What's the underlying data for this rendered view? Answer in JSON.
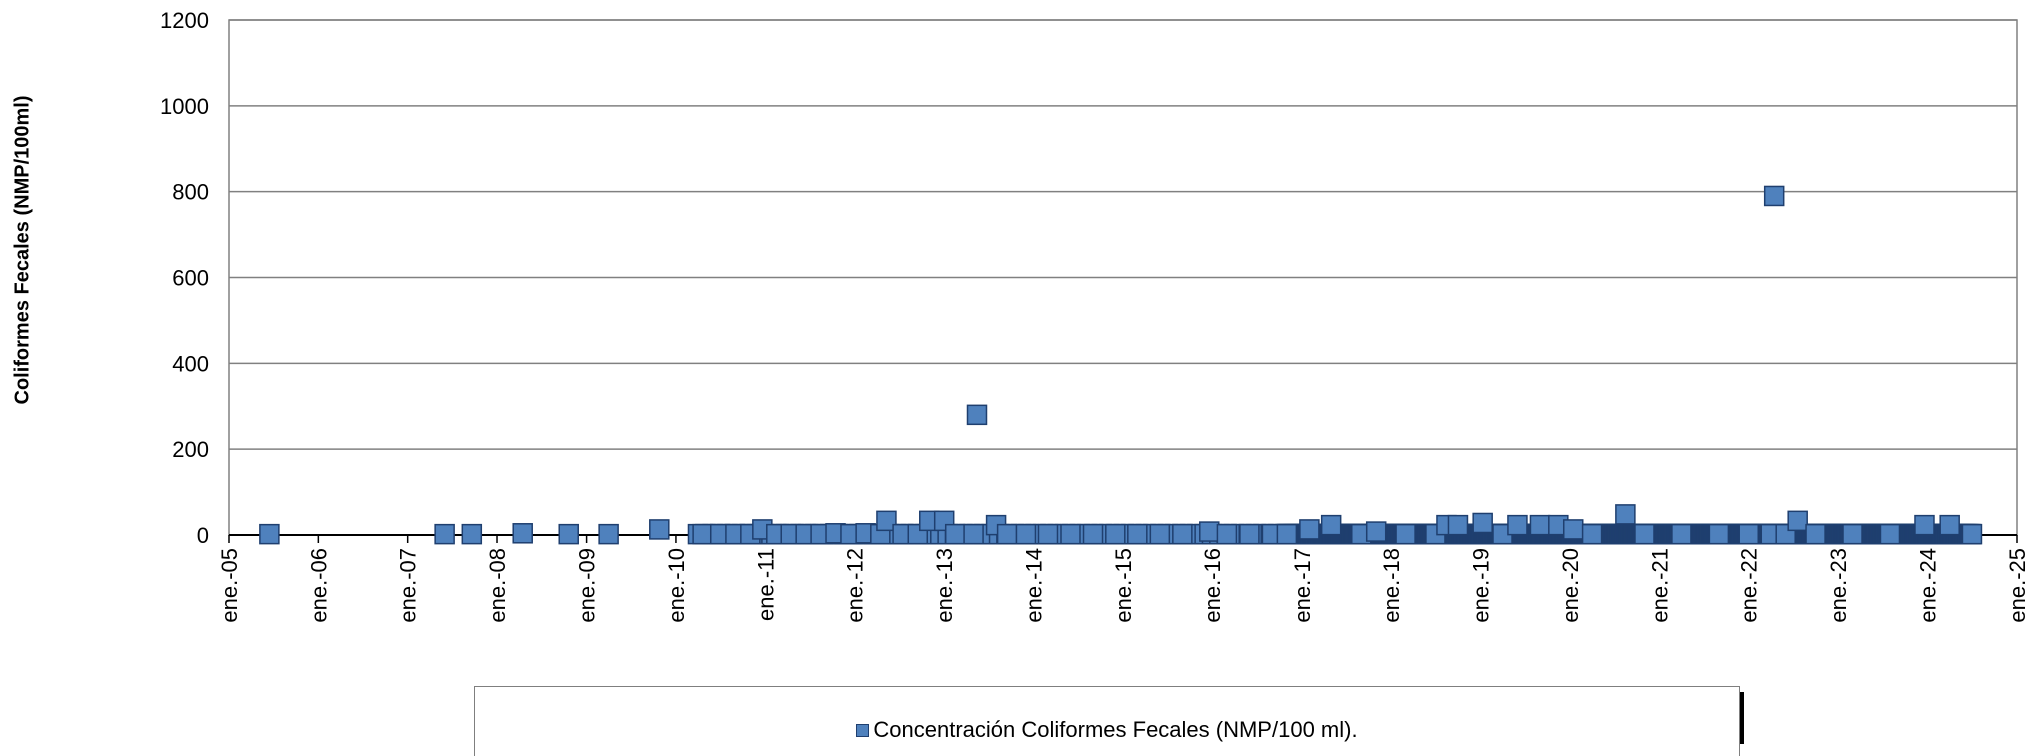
{
  "chart_data": {
    "type": "scatter",
    "ylabel": "Coliformes Fecales (NMP/100ml)",
    "ylim": [
      0,
      1200
    ],
    "yticks": [
      0,
      200,
      400,
      600,
      800,
      1000,
      1200
    ],
    "xlim": [
      "2005-01-01",
      "2025-01-01"
    ],
    "xtick_labels": [
      "ene.-05",
      "ene.-06",
      "ene.-07",
      "ene.-08",
      "ene.-09",
      "ene.-10",
      "ene.-11",
      "ene.-12",
      "ene.-13",
      "ene.-14",
      "ene.-15",
      "ene.-16",
      "ene.-17",
      "ene.-18",
      "ene.-19",
      "ene.-20",
      "ene.-21",
      "ene.-22",
      "ene.-23",
      "ene.-24",
      "ene.-25"
    ],
    "grid": "horizontal",
    "legend_position": "bottom",
    "colors": {
      "marker_fill": "#4f81bd",
      "marker_edge": "#1f3f6f"
    },
    "series": [
      {
        "name": "Concentración Coliformes Fecales (NMP/100 ml).",
        "points": [
          {
            "x": "2005-06-15",
            "y": 2
          },
          {
            "x": "2007-06-01",
            "y": 2
          },
          {
            "x": "2007-09-20",
            "y": 2
          },
          {
            "x": "2008-04-15",
            "y": 4
          },
          {
            "x": "2008-10-20",
            "y": 2
          },
          {
            "x": "2009-04-01",
            "y": 2
          },
          {
            "x": "2009-10-25",
            "y": 13
          },
          {
            "x": "2010-04-20",
            "y": 2
          },
          {
            "x": "2010-07-01",
            "y": 2
          },
          {
            "x": "2010-09-01",
            "y": 2
          },
          {
            "x": "2010-11-01",
            "y": 2
          },
          {
            "x": "2010-12-20",
            "y": 13
          },
          {
            "x": "2011-02-15",
            "y": 2
          },
          {
            "x": "2011-04-15",
            "y": 2
          },
          {
            "x": "2011-06-15",
            "y": 2
          },
          {
            "x": "2011-08-15",
            "y": 2
          },
          {
            "x": "2011-10-15",
            "y": 4
          },
          {
            "x": "2011-12-15",
            "y": 2
          },
          {
            "x": "2012-02-15",
            "y": 4
          },
          {
            "x": "2012-04-15",
            "y": 2
          },
          {
            "x": "2012-05-10",
            "y": 33
          },
          {
            "x": "2012-07-15",
            "y": 2
          },
          {
            "x": "2012-09-15",
            "y": 2
          },
          {
            "x": "2012-11-01",
            "y": 33
          },
          {
            "x": "2013-01-01",
            "y": 33
          },
          {
            "x": "2013-02-15",
            "y": 2
          },
          {
            "x": "2013-05-01",
            "y": 2
          },
          {
            "x": "2013-05-15",
            "y": 280
          },
          {
            "x": "2013-08-01",
            "y": 23
          },
          {
            "x": "2013-09-15",
            "y": 2
          },
          {
            "x": "2013-12-01",
            "y": 2
          },
          {
            "x": "2014-03-01",
            "y": 2
          },
          {
            "x": "2014-06-01",
            "y": 2
          },
          {
            "x": "2014-09-01",
            "y": 2
          },
          {
            "x": "2014-12-01",
            "y": 2
          },
          {
            "x": "2015-03-01",
            "y": 2
          },
          {
            "x": "2015-06-01",
            "y": 2
          },
          {
            "x": "2015-09-01",
            "y": 2
          },
          {
            "x": "2015-12-20",
            "y": 8
          },
          {
            "x": "2016-03-01",
            "y": 2
          },
          {
            "x": "2016-06-01",
            "y": 2
          },
          {
            "x": "2016-09-01",
            "y": 2
          },
          {
            "x": "2016-11-01",
            "y": 2
          },
          {
            "x": "2017-02-01",
            "y": 13
          },
          {
            "x": "2017-05-01",
            "y": 23
          },
          {
            "x": "2017-09-01",
            "y": 2
          },
          {
            "x": "2017-11-01",
            "y": 8
          },
          {
            "x": "2018-03-01",
            "y": 2
          },
          {
            "x": "2018-07-01",
            "y": 2
          },
          {
            "x": "2018-08-15",
            "y": 23
          },
          {
            "x": "2018-10-01",
            "y": 23
          },
          {
            "x": "2019-01-10",
            "y": 28
          },
          {
            "x": "2019-04-01",
            "y": 2
          },
          {
            "x": "2019-06-01",
            "y": 23
          },
          {
            "x": "2019-09-01",
            "y": 23
          },
          {
            "x": "2019-11-15",
            "y": 23
          },
          {
            "x": "2020-01-15",
            "y": 13
          },
          {
            "x": "2020-04-01",
            "y": 2
          },
          {
            "x": "2020-08-15",
            "y": 48
          },
          {
            "x": "2020-11-01",
            "y": 2
          },
          {
            "x": "2021-04-01",
            "y": 2
          },
          {
            "x": "2021-09-01",
            "y": 2
          },
          {
            "x": "2022-01-01",
            "y": 2
          },
          {
            "x": "2022-04-01",
            "y": 2
          },
          {
            "x": "2022-04-15",
            "y": 790
          },
          {
            "x": "2022-06-01",
            "y": 2
          },
          {
            "x": "2022-07-20",
            "y": 33
          },
          {
            "x": "2022-10-01",
            "y": 2
          },
          {
            "x": "2023-03-01",
            "y": 2
          },
          {
            "x": "2023-08-01",
            "y": 2
          },
          {
            "x": "2023-12-20",
            "y": 23
          },
          {
            "x": "2024-04-01",
            "y": 23
          },
          {
            "x": "2024-07-01",
            "y": 2
          }
        ],
        "dense_baseline": {
          "from": "2016-11-01",
          "to": "2024-07-01",
          "y": 2
        }
      }
    ]
  }
}
